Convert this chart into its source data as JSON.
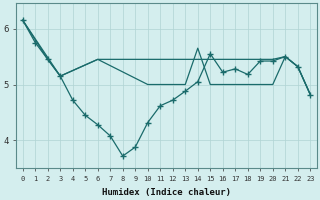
{
  "xlabel": "Humidex (Indice chaleur)",
  "bg_color": "#d4eeee",
  "line_color": "#1a6b6b",
  "grid_color": "#b0d4d4",
  "xlim": [
    -0.5,
    23.5
  ],
  "ylim": [
    3.5,
    6.45
  ],
  "yticks": [
    4,
    5,
    6
  ],
  "xticks": [
    0,
    1,
    2,
    3,
    4,
    5,
    6,
    7,
    8,
    9,
    10,
    11,
    12,
    13,
    14,
    15,
    16,
    17,
    18,
    19,
    20,
    21,
    22,
    23
  ],
  "main_x": [
    0,
    1,
    2,
    3,
    4,
    5,
    6,
    7,
    8,
    9,
    10,
    11,
    12,
    13,
    14,
    15,
    16,
    17,
    18,
    19,
    20,
    21,
    22,
    23
  ],
  "main_y": [
    6.15,
    5.75,
    5.45,
    5.15,
    4.72,
    4.45,
    4.28,
    4.08,
    3.72,
    3.88,
    4.32,
    4.62,
    4.72,
    4.88,
    5.05,
    5.55,
    5.22,
    5.28,
    5.18,
    5.42,
    5.42,
    5.5,
    5.32,
    4.82
  ],
  "upper1_x": [
    0,
    2,
    3,
    6,
    10,
    14,
    20,
    21,
    22,
    23
  ],
  "upper1_y": [
    6.15,
    5.45,
    5.15,
    5.45,
    5.45,
    5.45,
    5.45,
    5.5,
    5.32,
    4.82
  ],
  "upper2_x": [
    0,
    3,
    6,
    10,
    13,
    14,
    15,
    16,
    17,
    18,
    19,
    20,
    21,
    22,
    23
  ],
  "upper2_y": [
    6.15,
    5.15,
    5.45,
    5.0,
    5.0,
    5.65,
    5.0,
    5.0,
    5.0,
    5.0,
    5.0,
    5.0,
    5.5,
    5.32,
    4.82
  ]
}
